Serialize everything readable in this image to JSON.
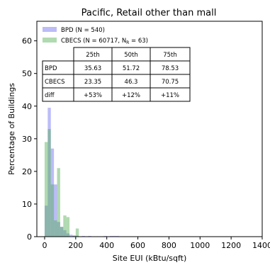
{
  "chart_data": {
    "type": "histogram",
    "title": "Pacific, Retail other than mall",
    "xlabel": "Site EUI (kBtu/sqft)",
    "ylabel": "Percentage of Buildings",
    "xlim": [
      -50,
      1400
    ],
    "ylim": [
      0,
      66
    ],
    "xticks": [
      0,
      200,
      400,
      600,
      800,
      1000,
      1200,
      1400
    ],
    "yticks": [
      0,
      10,
      20,
      30,
      40,
      50,
      60
    ],
    "bin_width": 20,
    "legend_position": "top-left",
    "series": [
      {
        "name": "BPD (N = 540)",
        "color": "#6b6bf0",
        "opacity": 0.45,
        "bins": [
          {
            "x0": 0,
            "value": 9.5
          },
          {
            "x0": 20,
            "value": 39.5
          },
          {
            "x0": 40,
            "value": 27
          },
          {
            "x0": 60,
            "value": 16
          },
          {
            "x0": 80,
            "value": 4.5
          },
          {
            "x0": 100,
            "value": 3
          },
          {
            "x0": 120,
            "value": 2
          },
          {
            "x0": 140,
            "value": 1
          },
          {
            "x0": 160,
            "value": 0.6
          },
          {
            "x0": 180,
            "value": 0.4
          },
          {
            "x0": 200,
            "value": 0.3
          },
          {
            "x0": 240,
            "value": 0.2
          },
          {
            "x0": 280,
            "value": 0.2
          },
          {
            "x0": 380,
            "value": 0.2
          },
          {
            "x0": 420,
            "value": 0.2
          },
          {
            "x0": 440,
            "value": 0.2
          },
          {
            "x0": 460,
            "value": 0.2
          },
          {
            "x0": 560,
            "value": 0.1
          },
          {
            "x0": 620,
            "value": 0.1
          }
        ]
      },
      {
        "name_parts": [
          "CBECS (N = 60717, N",
          "R",
          " = 63)"
        ],
        "color": "#4fae4f",
        "opacity": 0.45,
        "bins": [
          {
            "x0": 0,
            "value": 29
          },
          {
            "x0": 20,
            "value": 33
          },
          {
            "x0": 40,
            "value": 16
          },
          {
            "x0": 60,
            "value": 5
          },
          {
            "x0": 80,
            "value": 21
          },
          {
            "x0": 100,
            "value": 3
          },
          {
            "x0": 120,
            "value": 6.5
          },
          {
            "x0": 140,
            "value": 6
          },
          {
            "x0": 160,
            "value": 0
          },
          {
            "x0": 180,
            "value": 0.2
          },
          {
            "x0": 200,
            "value": 2.5
          }
        ]
      }
    ],
    "table": {
      "header": [
        "",
        "25th",
        "50th",
        "75th"
      ],
      "rows": [
        [
          "BPD",
          "35.63",
          "51.72",
          "78.53"
        ],
        [
          "CBECS",
          "23.35",
          "46.3",
          "70.75"
        ],
        [
          "diff",
          "+53%",
          "+12%",
          "+11%"
        ]
      ]
    }
  }
}
